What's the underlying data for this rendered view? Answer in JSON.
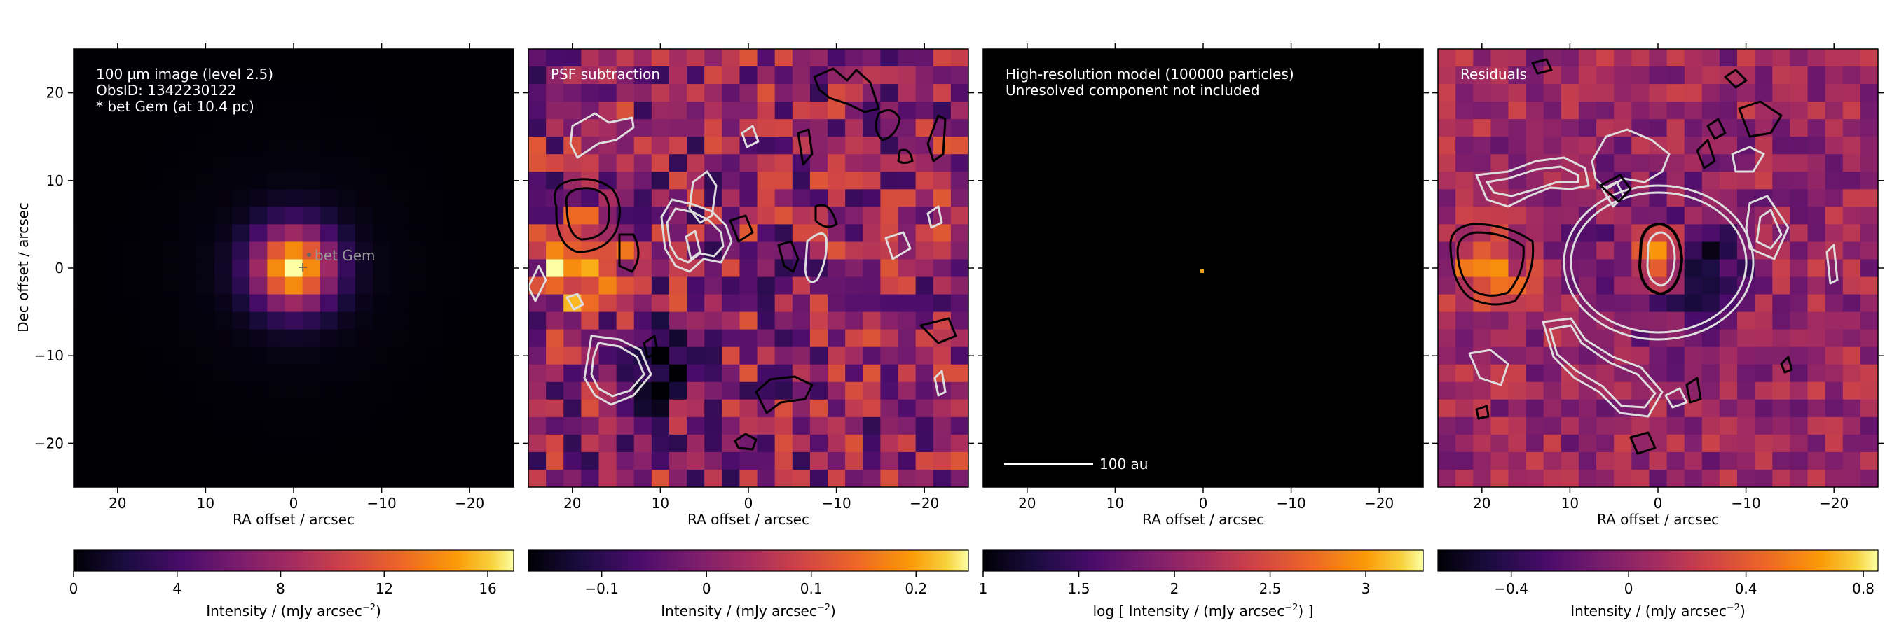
{
  "figure": {
    "y_axis_label": "Dec offset / arcsec"
  },
  "chart_data": [
    {
      "type": "heatmap",
      "panel": "observed-image",
      "annotation_lines": [
        "100 µm image (level 2.5)",
        "ObsID: 1342230122",
        "* bet Gem (at 10.4 pc)"
      ],
      "source_label": "bet Gem",
      "xlabel": "RA offset / arcsec",
      "ylabel": "Dec offset / arcsec",
      "xlim": [
        25,
        -25
      ],
      "ylim": [
        -25,
        25
      ],
      "xticks": [
        20,
        10,
        0,
        -10,
        -20
      ],
      "yticks": [
        20,
        10,
        0,
        -10,
        -20
      ],
      "colorbar": {
        "label": "Intensity / (mJy arcsec",
        "label_sup": "−2",
        "label_end": ")",
        "range": [
          0,
          17
        ],
        "ticks": [
          0,
          4,
          8,
          12,
          16
        ]
      },
      "peak": {
        "x": 0,
        "y": 0,
        "value": 17
      }
    },
    {
      "type": "heatmap",
      "panel": "psf-subtraction",
      "annotation_lines": [
        "PSF subtraction"
      ],
      "xlabel": "RA offset / arcsec",
      "xlim": [
        25,
        -25
      ],
      "ylim": [
        -25,
        25
      ],
      "xticks": [
        20,
        10,
        0,
        -10,
        -20
      ],
      "colorbar": {
        "label": "Intensity / (mJy arcsec",
        "label_sup": "−2",
        "label_end": ")",
        "range": [
          -0.17,
          0.25
        ],
        "ticks": [
          -0.1,
          0,
          0.1,
          0.2
        ]
      },
      "features": [
        {
          "kind": "positive",
          "x": 19,
          "y": 0,
          "value": 0.24
        },
        {
          "kind": "negative",
          "x": 9,
          "y": -12,
          "value": -0.16
        }
      ]
    },
    {
      "type": "heatmap",
      "panel": "model",
      "annotation_lines": [
        "High-resolution model (100000 particles)",
        "Unresolved component not included"
      ],
      "xlabel": "RA offset / arcsec",
      "xlim": [
        25,
        -25
      ],
      "ylim": [
        -25,
        25
      ],
      "xticks": [
        20,
        10,
        0,
        -10,
        -20
      ],
      "scale_bar": {
        "label": "100 au"
      },
      "colorbar": {
        "label": "log [ Intensity / (mJy arcsec",
        "label_sup": "−2",
        "label_end": ") ]",
        "range": [
          1,
          3.3
        ],
        "ticks": [
          1,
          1.5,
          2,
          2.5,
          3
        ]
      }
    },
    {
      "type": "heatmap",
      "panel": "residuals",
      "annotation_lines": [
        "Residuals"
      ],
      "xlabel": "RA offset / arcsec",
      "xlim": [
        25,
        -25
      ],
      "ylim": [
        -25,
        25
      ],
      "xticks": [
        20,
        10,
        0,
        -10,
        -20
      ],
      "colorbar": {
        "label": "Intensity / (mJy arcsec",
        "label_sup": "−2",
        "label_end": ")",
        "range": [
          -0.65,
          0.85
        ],
        "ticks": [
          -0.4,
          0,
          0.4,
          0.8
        ]
      },
      "features": [
        {
          "kind": "positive",
          "x": 0,
          "y": 1,
          "value": 0.85
        },
        {
          "kind": "negative",
          "x": -5,
          "y": 0,
          "value": -0.6
        },
        {
          "kind": "positive",
          "x": 19,
          "y": -1,
          "value": 0.5
        }
      ]
    }
  ]
}
